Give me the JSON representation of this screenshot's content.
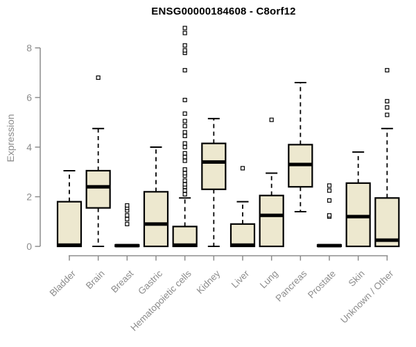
{
  "chart_data": {
    "type": "boxplot",
    "title": "ENSG00000184608 - C8orf12",
    "ylabel": "Expression",
    "xlabel": "",
    "ylim": [
      0,
      8.9
    ],
    "yticks": [
      0,
      2,
      4,
      6,
      8
    ],
    "grid": false,
    "categories": [
      "Bladder",
      "Brain",
      "Breast",
      "Gastric",
      "Hematopoietic cells",
      "Kidney",
      "Liver",
      "Lung",
      "Pancreas",
      "Prostate",
      "Skin",
      "Unknown / Other"
    ],
    "boxes": [
      {
        "category": "Bladder",
        "whislo": 0,
        "q1": 0,
        "med": 0.05,
        "q3": 1.8,
        "whishi": 3.05,
        "outliers": []
      },
      {
        "category": "Brain",
        "whislo": 0,
        "q1": 1.55,
        "med": 2.4,
        "q3": 3.05,
        "whishi": 4.75,
        "outliers": [
          6.8
        ]
      },
      {
        "category": "Breast",
        "whislo": 0,
        "q1": 0,
        "med": 0.03,
        "q3": 0.06,
        "whishi": 0.06,
        "outliers": [
          0.9,
          1.1,
          1.25,
          1.45,
          1.55,
          1.65
        ]
      },
      {
        "category": "Gastric",
        "whislo": 0,
        "q1": 0,
        "med": 0.9,
        "q3": 2.2,
        "whishi": 4.0,
        "outliers": []
      },
      {
        "category": "Hematopoietic cells",
        "whislo": 0,
        "q1": 0,
        "med": 0.05,
        "q3": 0.8,
        "whishi": 1.95,
        "outliers": [
          2.1,
          2.25,
          2.4,
          2.5,
          2.65,
          2.85,
          2.95,
          3.1,
          3.45,
          3.6,
          3.75,
          4.0,
          4.15,
          4.45,
          4.6,
          4.85,
          5.05,
          5.35,
          5.9,
          7.1,
          7.8,
          7.9,
          8.1,
          8.6,
          8.8
        ]
      },
      {
        "category": "Kidney",
        "whislo": 0,
        "q1": 2.3,
        "med": 3.4,
        "q3": 4.15,
        "whishi": 5.15,
        "outliers": []
      },
      {
        "category": "Liver",
        "whislo": 0,
        "q1": 0,
        "med": 0.05,
        "q3": 0.9,
        "whishi": 1.8,
        "outliers": [
          3.15
        ]
      },
      {
        "category": "Lung",
        "whislo": 0,
        "q1": 0,
        "med": 1.25,
        "q3": 2.05,
        "whishi": 2.95,
        "outliers": [
          5.1
        ]
      },
      {
        "category": "Pancreas",
        "whislo": 1.4,
        "q1": 2.4,
        "med": 3.3,
        "q3": 4.1,
        "whishi": 6.6,
        "outliers": []
      },
      {
        "category": "Prostate",
        "whislo": 0,
        "q1": 0,
        "med": 0.03,
        "q3": 0.06,
        "whishi": 0.06,
        "outliers": [
          1.2,
          1.25,
          1.85,
          2.25,
          2.45
        ]
      },
      {
        "category": "Skin",
        "whislo": 0,
        "q1": 0,
        "med": 1.2,
        "q3": 2.55,
        "whishi": 3.8,
        "outliers": []
      },
      {
        "category": "Unknown / Other",
        "whislo": 0,
        "q1": 0,
        "med": 0.25,
        "q3": 1.95,
        "whishi": 4.75,
        "outliers": [
          5.3,
          5.6,
          5.85,
          7.1
        ]
      }
    ],
    "styles": {
      "box_fill": "#ede8cf",
      "box_stroke": "#000000",
      "median_color": "#000000",
      "whisker_color": "#000000",
      "outlier_color": "#000000",
      "axis_color": "#8c8c8c",
      "title_color": "#000000",
      "background": "#ffffff"
    }
  }
}
